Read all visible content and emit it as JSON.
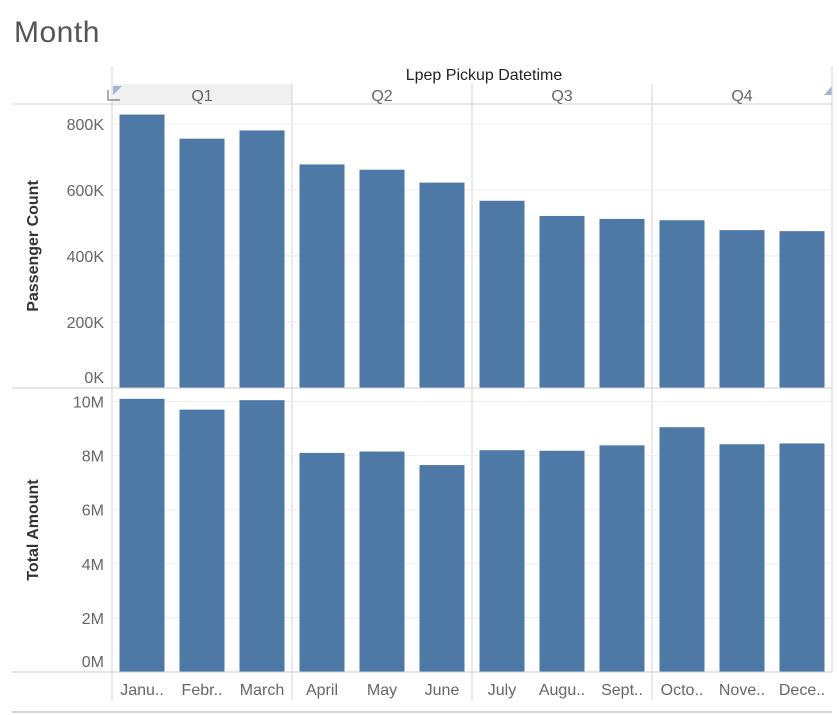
{
  "sheet": {
    "title": "Month"
  },
  "colors": {
    "bar": "#4e79a7",
    "grid": "#eeeeee",
    "divider": "#d4d4d4",
    "selected_header": "#f0f0f0"
  },
  "chart_data": {
    "type": "bar",
    "column_header": "Lpep Pickup Datetime",
    "quarters": [
      {
        "label": "Q1",
        "months": [
          "Janu..",
          "Febr..",
          "March"
        ]
      },
      {
        "label": "Q2",
        "months": [
          "April",
          "May",
          "June"
        ]
      },
      {
        "label": "Q3",
        "months": [
          "July",
          "Augu..",
          "Sept.."
        ]
      },
      {
        "label": "Q4",
        "months": [
          "Octo..",
          "Nove..",
          "Dece.."
        ]
      }
    ],
    "categories": [
      "Janu..",
      "Febr..",
      "March",
      "April",
      "May",
      "June",
      "July",
      "Augu..",
      "Sept..",
      "Octo..",
      "Nove..",
      "Dece.."
    ],
    "series": [
      {
        "name": "Passenger Count",
        "ylabel": "Passenger Count",
        "ylim": [
          0,
          860000
        ],
        "ticks": [
          0,
          200000,
          400000,
          600000,
          800000
        ],
        "tick_labels": [
          "0K",
          "200K",
          "400K",
          "600K",
          "800K"
        ],
        "values": [
          828000,
          755000,
          780000,
          677000,
          661000,
          622000,
          567000,
          521000,
          512000,
          508000,
          478000,
          475000
        ]
      },
      {
        "name": "Total Amount",
        "ylabel": "Total Amount",
        "ylim": [
          0,
          10500000
        ],
        "ticks": [
          0,
          2000000,
          4000000,
          6000000,
          8000000,
          10000000
        ],
        "tick_labels": [
          "0M",
          "2M",
          "4M",
          "6M",
          "8M",
          "10M"
        ],
        "values": [
          10100000,
          9700000,
          10050000,
          8100000,
          8150000,
          7650000,
          8200000,
          8180000,
          8380000,
          9050000,
          8420000,
          8450000
        ]
      }
    ],
    "grid": true,
    "legend": "none"
  }
}
